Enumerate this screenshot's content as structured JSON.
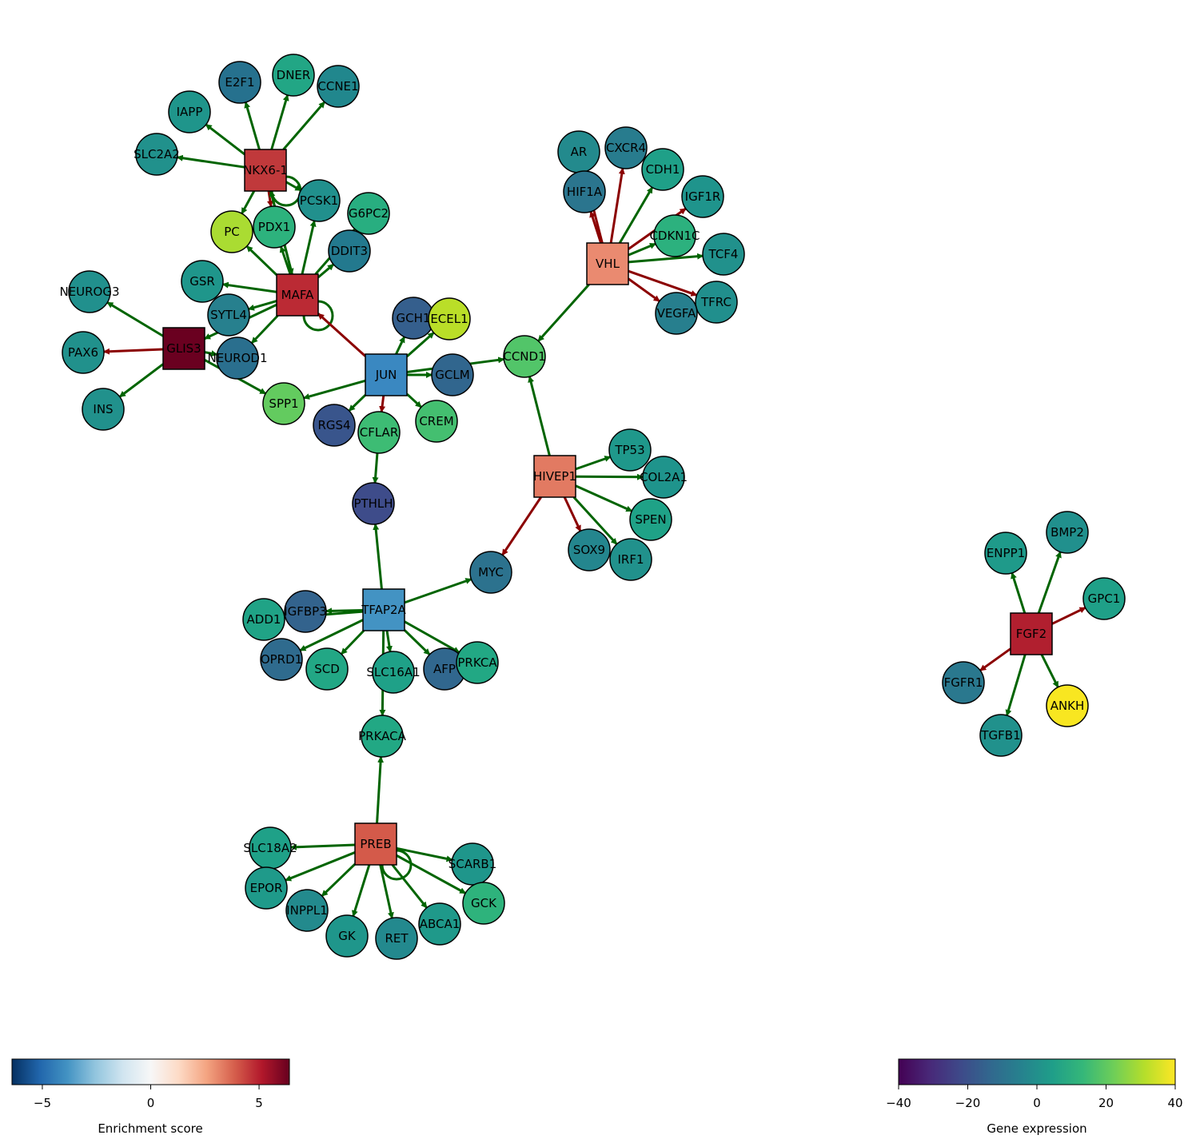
{
  "colorbars": {
    "enrichment": {
      "label": "Enrichment score",
      "min": -6.4,
      "max": 6.4,
      "ticks": [
        "−5",
        "0",
        "5"
      ],
      "tick_values": [
        -5,
        0,
        5
      ],
      "colors": [
        "#053061",
        "#2166ac",
        "#4393c3",
        "#92c5de",
        "#d1e5f0",
        "#f7f7f7",
        "#fddbc7",
        "#f4a582",
        "#d6604d",
        "#b2182b",
        "#67001f"
      ]
    },
    "expression": {
      "label": "Gene expression",
      "min": -40,
      "max": 40,
      "ticks": [
        "−40",
        "−20",
        "0",
        "20",
        "40"
      ],
      "tick_values": [
        -40,
        -20,
        0,
        20,
        40
      ],
      "colors": [
        "#440154",
        "#482878",
        "#3e4989",
        "#31688e",
        "#26828e",
        "#1f9e89",
        "#35b779",
        "#6ece58",
        "#b5de2b",
        "#fde725"
      ]
    }
  },
  "legend_colors": {
    "activation": "#006400",
    "repression": "#8b0000"
  },
  "regulators": [
    {
      "id": "NKX6-1",
      "color": "#c0393b"
    },
    {
      "id": "MAFA",
      "color": "#bb2a34"
    },
    {
      "id": "GLIS3",
      "color": "#6a0020"
    },
    {
      "id": "JUN",
      "color": "#3a88c1"
    },
    {
      "id": "VHL",
      "color": "#ea8a70"
    },
    {
      "id": "HIVEP1",
      "color": "#e27a62"
    },
    {
      "id": "TFAP2A",
      "color": "#4393c3"
    },
    {
      "id": "PREB",
      "color": "#d45a4a"
    },
    {
      "id": "FGF2",
      "color": "#b11f2f"
    }
  ],
  "targets": [
    {
      "id": "E2F1",
      "color": "#26718e"
    },
    {
      "id": "DNER",
      "color": "#22a685"
    },
    {
      "id": "CCNE1",
      "color": "#21878d"
    },
    {
      "id": "IAPP",
      "color": "#1f958b"
    },
    {
      "id": "SLC2A2",
      "color": "#21918c"
    },
    {
      "id": "PCSK1",
      "color": "#21908d"
    },
    {
      "id": "G6PC2",
      "color": "#28ae80"
    },
    {
      "id": "PC",
      "color": "#aadc32"
    },
    {
      "id": "PDX1",
      "color": "#2db27d"
    },
    {
      "id": "DDIT3",
      "color": "#23798e"
    },
    {
      "id": "NEUROG3",
      "color": "#21908d"
    },
    {
      "id": "GSR",
      "color": "#1f968b"
    },
    {
      "id": "SYTL4",
      "color": "#27808e"
    },
    {
      "id": "PAX6",
      "color": "#21918c"
    },
    {
      "id": "NEUROD1",
      "color": "#2a6f8e"
    },
    {
      "id": "INS",
      "color": "#21918c"
    },
    {
      "id": "SPP1",
      "color": "#63cb5f"
    },
    {
      "id": "GCH1",
      "color": "#355f8d"
    },
    {
      "id": "ECEL1",
      "color": "#bade28"
    },
    {
      "id": "GCLM",
      "color": "#31668e"
    },
    {
      "id": "RGS4",
      "color": "#39558c"
    },
    {
      "id": "CFLAR",
      "color": "#3dbc74"
    },
    {
      "id": "CREM",
      "color": "#44bf70"
    },
    {
      "id": "PTHLH",
      "color": "#3e4c8a"
    },
    {
      "id": "AR",
      "color": "#238a8d"
    },
    {
      "id": "CXCR4",
      "color": "#287c8e"
    },
    {
      "id": "CDH1",
      "color": "#1fa088"
    },
    {
      "id": "HIF1A",
      "color": "#2b758e"
    },
    {
      "id": "IGF1R",
      "color": "#1f948c"
    },
    {
      "id": "CDKN1C",
      "color": "#2cb17e"
    },
    {
      "id": "TCF4",
      "color": "#21918c"
    },
    {
      "id": "TFRC",
      "color": "#218f8d"
    },
    {
      "id": "VEGFA",
      "color": "#277f8e"
    },
    {
      "id": "CCND1",
      "color": "#52c569"
    },
    {
      "id": "TP53",
      "color": "#1f988b"
    },
    {
      "id": "COL2A1",
      "color": "#1f948c"
    },
    {
      "id": "SPEN",
      "color": "#1fa287"
    },
    {
      "id": "SOX9",
      "color": "#24868e"
    },
    {
      "id": "IRF1",
      "color": "#21918c"
    },
    {
      "id": "MYC",
      "color": "#2c728e"
    },
    {
      "id": "ADD1",
      "color": "#20a386"
    },
    {
      "id": "IGFBP3",
      "color": "#33638d"
    },
    {
      "id": "OPRD1",
      "color": "#2f6b8e"
    },
    {
      "id": "SCD",
      "color": "#22a785"
    },
    {
      "id": "SLC16A1",
      "color": "#1fa188"
    },
    {
      "id": "AFP",
      "color": "#31678e"
    },
    {
      "id": "PRKCA",
      "color": "#22a884"
    },
    {
      "id": "PRKACA",
      "color": "#22a884"
    },
    {
      "id": "SLC18A2",
      "color": "#1fa188"
    },
    {
      "id": "EPOR",
      "color": "#1f9a8a"
    },
    {
      "id": "INPPL1",
      "color": "#238a8d"
    },
    {
      "id": "GK",
      "color": "#1f968b"
    },
    {
      "id": "RET",
      "color": "#23898e"
    },
    {
      "id": "ABCA1",
      "color": "#1f998a"
    },
    {
      "id": "SCARB1",
      "color": "#1f968b"
    },
    {
      "id": "GCK",
      "color": "#2eb37c"
    },
    {
      "id": "ENPP1",
      "color": "#1f9a8a"
    },
    {
      "id": "BMP2",
      "color": "#21908d"
    },
    {
      "id": "GPC1",
      "color": "#1fa088"
    },
    {
      "id": "FGFR1",
      "color": "#2a788e"
    },
    {
      "id": "ANKH",
      "color": "#f8e621"
    },
    {
      "id": "TGFB1",
      "color": "#21918c"
    }
  ],
  "edges": [
    [
      "NKX6-1",
      "E2F1",
      "act"
    ],
    [
      "NKX6-1",
      "DNER",
      "act"
    ],
    [
      "NKX6-1",
      "CCNE1",
      "act"
    ],
    [
      "NKX6-1",
      "IAPP",
      "act"
    ],
    [
      "NKX6-1",
      "SLC2A2",
      "act"
    ],
    [
      "NKX6-1",
      "PCSK1",
      "act"
    ],
    [
      "NKX6-1",
      "PDX1",
      "rep"
    ],
    [
      "NKX6-1",
      "PC",
      "act"
    ],
    [
      "NKX6-1",
      "MAFA",
      "act"
    ],
    [
      "NKX6-1",
      "NKX6-1",
      "act"
    ],
    [
      "MAFA",
      "NKX6-1",
      "act"
    ],
    [
      "MAFA",
      "PDX1",
      "act"
    ],
    [
      "MAFA",
      "PC",
      "act"
    ],
    [
      "MAFA",
      "PCSK1",
      "act"
    ],
    [
      "MAFA",
      "G6PC2",
      "act"
    ],
    [
      "MAFA",
      "DDIT3",
      "act"
    ],
    [
      "MAFA",
      "GSR",
      "act"
    ],
    [
      "MAFA",
      "SYTL4",
      "act"
    ],
    [
      "MAFA",
      "GLIS3",
      "act"
    ],
    [
      "MAFA",
      "NEUROD1",
      "act"
    ],
    [
      "MAFA",
      "MAFA",
      "act"
    ],
    [
      "GLIS3",
      "NEUROG3",
      "act"
    ],
    [
      "GLIS3",
      "PAX6",
      "rep"
    ],
    [
      "GLIS3",
      "INS",
      "act"
    ],
    [
      "GLIS3",
      "SPP1",
      "act"
    ],
    [
      "GLIS3",
      "NEUROD1",
      "act"
    ],
    [
      "JUN",
      "MAFA",
      "rep"
    ],
    [
      "JUN",
      "GCH1",
      "act"
    ],
    [
      "JUN",
      "ECEL1",
      "act"
    ],
    [
      "JUN",
      "GCLM",
      "act"
    ],
    [
      "JUN",
      "CCND1",
      "act"
    ],
    [
      "JUN",
      "SPP1",
      "act"
    ],
    [
      "JUN",
      "RGS4",
      "act"
    ],
    [
      "JUN",
      "CFLAR",
      "rep"
    ],
    [
      "JUN",
      "CREM",
      "act"
    ],
    [
      "CFLAR",
      "PTHLH",
      "act"
    ],
    [
      "VHL",
      "AR",
      "rep"
    ],
    [
      "VHL",
      "HIF1A",
      "rep"
    ],
    [
      "VHL",
      "CXCR4",
      "rep"
    ],
    [
      "VHL",
      "CDH1",
      "act"
    ],
    [
      "VHL",
      "IGF1R",
      "rep"
    ],
    [
      "VHL",
      "CDKN1C",
      "act"
    ],
    [
      "VHL",
      "TCF4",
      "act"
    ],
    [
      "VHL",
      "TFRC",
      "rep"
    ],
    [
      "VHL",
      "VEGFA",
      "rep"
    ],
    [
      "VHL",
      "CCND1",
      "act"
    ],
    [
      "HIVEP1",
      "CCND1",
      "act"
    ],
    [
      "HIVEP1",
      "TP53",
      "act"
    ],
    [
      "HIVEP1",
      "COL2A1",
      "act"
    ],
    [
      "HIVEP1",
      "SPEN",
      "act"
    ],
    [
      "HIVEP1",
      "IRF1",
      "act"
    ],
    [
      "HIVEP1",
      "SOX9",
      "rep"
    ],
    [
      "HIVEP1",
      "MYC",
      "rep"
    ],
    [
      "TFAP2A",
      "PTHLH",
      "act"
    ],
    [
      "TFAP2A",
      "MYC",
      "act"
    ],
    [
      "TFAP2A",
      "IGFBP3",
      "act"
    ],
    [
      "TFAP2A",
      "ADD1",
      "act"
    ],
    [
      "TFAP2A",
      "OPRD1",
      "act"
    ],
    [
      "TFAP2A",
      "SCD",
      "act"
    ],
    [
      "TFAP2A",
      "SLC16A1",
      "act"
    ],
    [
      "TFAP2A",
      "AFP",
      "act"
    ],
    [
      "TFAP2A",
      "PRKCA",
      "act"
    ],
    [
      "TFAP2A",
      "PRKACA",
      "act"
    ],
    [
      "PREB",
      "PRKACA",
      "act"
    ],
    [
      "PREB",
      "SLC18A2",
      "act"
    ],
    [
      "PREB",
      "EPOR",
      "act"
    ],
    [
      "PREB",
      "INPPL1",
      "act"
    ],
    [
      "PREB",
      "GK",
      "act"
    ],
    [
      "PREB",
      "RET",
      "act"
    ],
    [
      "PREB",
      "ABCA1",
      "act"
    ],
    [
      "PREB",
      "GCK",
      "act"
    ],
    [
      "PREB",
      "SCARB1",
      "act"
    ],
    [
      "PREB",
      "PREB",
      "act"
    ],
    [
      "FGF2",
      "ENPP1",
      "act"
    ],
    [
      "FGF2",
      "BMP2",
      "act"
    ],
    [
      "FGF2",
      "GPC1",
      "rep"
    ],
    [
      "FGF2",
      "FGFR1",
      "rep"
    ],
    [
      "FGF2",
      "ANKH",
      "act"
    ],
    [
      "FGF2",
      "TGFB1",
      "act"
    ]
  ]
}
